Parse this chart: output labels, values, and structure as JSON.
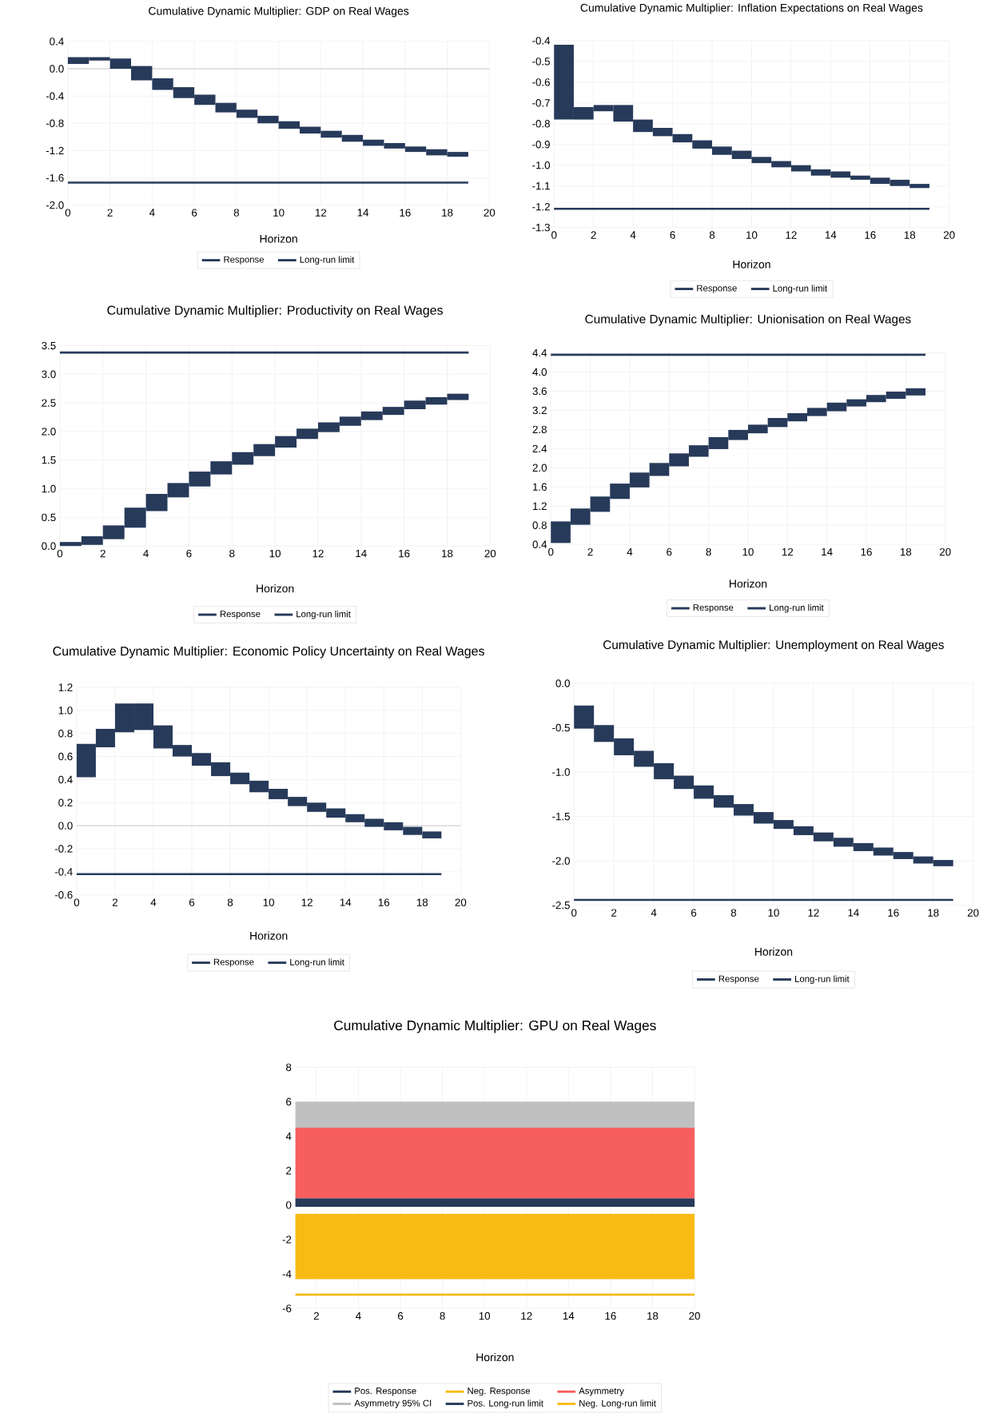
{
  "chart_data": [
    {
      "type": "bar",
      "title": "Cumulative Dynamic Multiplier: GDP on Real Wages",
      "xlabel": "Horizon",
      "xlim": [
        0,
        20
      ],
      "xticks": [
        0,
        2,
        4,
        6,
        8,
        10,
        12,
        14,
        16,
        18,
        20
      ],
      "ylim": [
        -2.0,
        0.4
      ],
      "yticks": [
        {
          "value": -2.0,
          "label": "-2.0"
        },
        {
          "value": -1.6,
          "label": "-1.6"
        },
        {
          "value": -1.2,
          "label": "-1.2"
        },
        {
          "value": -0.8,
          "label": "-0.8"
        },
        {
          "value": -0.4,
          "label": "-0.4"
        },
        {
          "value": 0.0,
          "label": "0.0"
        },
        {
          "value": 0.4,
          "label": "0.4"
        }
      ],
      "grid": true,
      "legend": "bottom",
      "ref_lines": [
        {
          "axis": "y",
          "value": 0,
          "color": "#bfbfbf"
        }
      ],
      "series": [
        {
          "name": "Response",
          "color": "#273a5a",
          "x": [
            0.5,
            1.5,
            2.5,
            3.5,
            4.5,
            5.5,
            6.5,
            7.5,
            8.5,
            9.5,
            10.5,
            11.5,
            12.5,
            13.5,
            14.5,
            15.5,
            16.5,
            17.5,
            18.5
          ],
          "base": [
            0.07,
            0.12,
            0.0,
            -0.17,
            -0.31,
            -0.43,
            -0.53,
            -0.64,
            -0.72,
            -0.8,
            -0.88,
            -0.95,
            -1.01,
            -1.07,
            -1.13,
            -1.17,
            -1.22,
            -1.27,
            -1.29
          ],
          "values": [
            0.1,
            0.05,
            0.15,
            0.21,
            0.17,
            0.16,
            0.15,
            0.14,
            0.12,
            0.11,
            0.11,
            0.1,
            0.1,
            0.1,
            0.09,
            0.08,
            0.08,
            0.09,
            0.07
          ]
        },
        {
          "name": "Long-run limit",
          "type": "line",
          "color": "#273a5a",
          "x": [
            0,
            19
          ],
          "values": [
            -1.67,
            -1.67
          ]
        }
      ]
    },
    {
      "type": "bar",
      "title": "Cumulative Dynamic Multiplier: Inflation Expectations on Real Wages",
      "xlabel": "Horizon",
      "xlim": [
        0,
        20
      ],
      "xticks": [
        0,
        2,
        4,
        6,
        8,
        10,
        12,
        14,
        16,
        18,
        20
      ],
      "ylim": [
        -1.3,
        -0.4
      ],
      "yticks": [
        {
          "value": -1.3,
          "label": "-1.3"
        },
        {
          "value": -1.2,
          "label": "-1.2"
        },
        {
          "value": -1.1,
          "label": "-1.1"
        },
        {
          "value": -1.0,
          "label": "-1.0"
        },
        {
          "value": -0.9,
          "label": "-0.9"
        },
        {
          "value": -0.8,
          "label": "-0.8"
        },
        {
          "value": -0.7,
          "label": "-0.7"
        },
        {
          "value": -0.6,
          "label": "-0.6"
        },
        {
          "value": -0.5,
          "label": "-0.5"
        },
        {
          "value": -0.4,
          "label": "-0.4"
        }
      ],
      "grid": true,
      "legend": "bottom",
      "series": [
        {
          "name": "Response",
          "color": "#273a5a",
          "x": [
            0.5,
            1.5,
            2.5,
            3.5,
            4.5,
            5.5,
            6.5,
            7.5,
            8.5,
            9.5,
            10.5,
            11.5,
            12.5,
            13.5,
            14.5,
            15.5,
            16.5,
            17.5,
            18.5
          ],
          "base": [
            -0.78,
            -0.78,
            -0.74,
            -0.79,
            -0.84,
            -0.86,
            -0.89,
            -0.92,
            -0.95,
            -0.97,
            -0.99,
            -1.01,
            -1.03,
            -1.05,
            -1.06,
            -1.07,
            -1.09,
            -1.1,
            -1.11
          ],
          "values": [
            0.36,
            0.06,
            0.03,
            0.08,
            0.06,
            0.04,
            0.04,
            0.04,
            0.04,
            0.04,
            0.03,
            0.03,
            0.03,
            0.03,
            0.03,
            0.02,
            0.03,
            0.03,
            0.02
          ]
        },
        {
          "name": "Long-run limit",
          "type": "line",
          "color": "#273a5a",
          "x": [
            0,
            19
          ],
          "values": [
            -1.21,
            -1.21
          ]
        }
      ]
    },
    {
      "type": "bar",
      "title": "Cumulative Dynamic Multiplier: Productivity on Real Wages",
      "xlabel": "Horizon",
      "xlim": [
        0,
        20
      ],
      "xticks": [
        0,
        2,
        4,
        6,
        8,
        10,
        12,
        14,
        16,
        18,
        20
      ],
      "ylim": [
        0.0,
        3.5
      ],
      "yticks": [
        {
          "value": 0.0,
          "label": "0.0"
        },
        {
          "value": 0.5,
          "label": "0.5"
        },
        {
          "value": 1.0,
          "label": "1.0"
        },
        {
          "value": 1.5,
          "label": "1.5"
        },
        {
          "value": 2.0,
          "label": "2.0"
        },
        {
          "value": 2.5,
          "label": "2.5"
        },
        {
          "value": 3.0,
          "label": "3.0"
        },
        {
          "value": 3.5,
          "label": "3.5"
        }
      ],
      "grid": true,
      "legend": "bottom",
      "series": [
        {
          "name": "Response",
          "color": "#273a5a",
          "x": [
            0.5,
            1.5,
            2.5,
            3.5,
            4.5,
            5.5,
            6.5,
            7.5,
            8.5,
            9.5,
            10.5,
            11.5,
            12.5,
            13.5,
            14.5,
            15.5,
            16.5,
            17.5,
            18.5
          ],
          "base": [
            0.0,
            0.02,
            0.12,
            0.32,
            0.61,
            0.85,
            1.04,
            1.25,
            1.42,
            1.57,
            1.72,
            1.87,
            1.99,
            2.1,
            2.2,
            2.29,
            2.39,
            2.47,
            2.55
          ],
          "values": [
            0.07,
            0.15,
            0.24,
            0.35,
            0.3,
            0.25,
            0.26,
            0.23,
            0.22,
            0.21,
            0.2,
            0.18,
            0.17,
            0.16,
            0.15,
            0.14,
            0.15,
            0.13,
            0.11
          ]
        },
        {
          "name": "Long-run limit",
          "type": "line",
          "color": "#273a5a",
          "x": [
            0,
            19
          ],
          "values": [
            3.38,
            3.38
          ]
        }
      ]
    },
    {
      "type": "bar",
      "title": "Cumulative Dynamic Multiplier: Unionisation on Real Wages",
      "xlabel": "Horizon",
      "xlim": [
        0,
        20
      ],
      "xticks": [
        0,
        2,
        4,
        6,
        8,
        10,
        12,
        14,
        16,
        18,
        20
      ],
      "ylim": [
        0.4,
        4.4
      ],
      "yticks": [
        {
          "value": 0.4,
          "label": "0.4"
        },
        {
          "value": 0.8,
          "label": "0.8"
        },
        {
          "value": 1.2,
          "label": "1.2"
        },
        {
          "value": 1.6,
          "label": "1.6"
        },
        {
          "value": 2.0,
          "label": "2.0"
        },
        {
          "value": 2.4,
          "label": "2.4"
        },
        {
          "value": 2.8,
          "label": "2.8"
        },
        {
          "value": 3.2,
          "label": "3.2"
        },
        {
          "value": 3.6,
          "label": "3.6"
        },
        {
          "value": 4.0,
          "label": "4.0"
        },
        {
          "value": 4.4,
          "label": "4.4"
        }
      ],
      "grid": true,
      "legend": "bottom",
      "series": [
        {
          "name": "Response",
          "color": "#273a5a",
          "x": [
            0.5,
            1.5,
            2.5,
            3.5,
            4.5,
            5.5,
            6.5,
            7.5,
            8.5,
            9.5,
            10.5,
            11.5,
            12.5,
            13.5,
            14.5,
            15.5,
            16.5,
            17.5,
            18.5
          ],
          "base": [
            0.43,
            0.81,
            1.08,
            1.35,
            1.59,
            1.83,
            2.03,
            2.23,
            2.39,
            2.58,
            2.72,
            2.85,
            2.97,
            3.08,
            3.18,
            3.28,
            3.37,
            3.44,
            3.51
          ],
          "values": [
            0.45,
            0.34,
            0.32,
            0.32,
            0.31,
            0.27,
            0.27,
            0.24,
            0.25,
            0.21,
            0.18,
            0.19,
            0.17,
            0.17,
            0.18,
            0.15,
            0.15,
            0.15,
            0.15
          ]
        },
        {
          "name": "Long-run limit",
          "type": "line",
          "color": "#273a5a",
          "x": [
            0,
            19
          ],
          "values": [
            4.36,
            4.36
          ]
        }
      ]
    },
    {
      "type": "bar",
      "title": "Cumulative Dynamic Multiplier: Economic Policy Uncertainty on Real Wages",
      "xlabel": "Horizon",
      "xlim": [
        0,
        20
      ],
      "xticks": [
        0,
        2,
        4,
        6,
        8,
        10,
        12,
        14,
        16,
        18,
        20
      ],
      "ylim": [
        -0.6,
        1.2
      ],
      "yticks": [
        {
          "value": -0.6,
          "label": "-0.6"
        },
        {
          "value": -0.4,
          "label": "-0.4"
        },
        {
          "value": -0.2,
          "label": "-0.2"
        },
        {
          "value": 0.0,
          "label": "0.0"
        },
        {
          "value": 0.2,
          "label": "0.2"
        },
        {
          "value": 0.4,
          "label": "0.4"
        },
        {
          "value": 0.6,
          "label": "0.6"
        },
        {
          "value": 0.8,
          "label": "0.8"
        },
        {
          "value": 1.0,
          "label": "1.0"
        },
        {
          "value": 1.2,
          "label": "1.2"
        }
      ],
      "grid": true,
      "legend": "bottom",
      "ref_lines": [
        {
          "axis": "y",
          "value": 0,
          "color": "#bfbfbf"
        }
      ],
      "series": [
        {
          "name": "Response",
          "color": "#273a5a",
          "x": [
            0.5,
            1.5,
            2.5,
            3.5,
            4.5,
            5.5,
            6.5,
            7.5,
            8.5,
            9.5,
            10.5,
            11.5,
            12.5,
            13.5,
            14.5,
            15.5,
            16.5,
            17.5,
            18.5
          ],
          "base": [
            0.42,
            0.68,
            0.81,
            0.83,
            0.67,
            0.6,
            0.52,
            0.43,
            0.36,
            0.29,
            0.23,
            0.17,
            0.12,
            0.07,
            0.03,
            -0.01,
            -0.04,
            -0.08,
            -0.11
          ],
          "values": [
            0.29,
            0.16,
            0.25,
            0.23,
            0.2,
            0.1,
            0.11,
            0.12,
            0.1,
            0.1,
            0.09,
            0.08,
            0.08,
            0.08,
            0.07,
            0.07,
            0.07,
            0.07,
            0.06
          ]
        },
        {
          "name": "Long-run limit",
          "type": "line",
          "color": "#273a5a",
          "x": [
            0,
            19
          ],
          "values": [
            -0.42,
            -0.42
          ]
        }
      ]
    },
    {
      "type": "bar",
      "title": "Cumulative Dynamic Multiplier: Unemployment on Real Wages",
      "xlabel": "Horizon",
      "xlim": [
        0,
        20
      ],
      "xticks": [
        0,
        2,
        4,
        6,
        8,
        10,
        12,
        14,
        16,
        18,
        20
      ],
      "ylim": [
        -2.5,
        0.0
      ],
      "yticks": [
        {
          "value": -2.5,
          "label": "-2.5"
        },
        {
          "value": -2.0,
          "label": "-2.0"
        },
        {
          "value": -1.5,
          "label": "-1.5"
        },
        {
          "value": -1.0,
          "label": "-1.0"
        },
        {
          "value": -0.5,
          "label": "-0.5"
        },
        {
          "value": 0.0,
          "label": "0.0"
        }
      ],
      "grid": true,
      "legend": "bottom",
      "series": [
        {
          "name": "Response",
          "color": "#273a5a",
          "x": [
            0.5,
            1.5,
            2.5,
            3.5,
            4.5,
            5.5,
            6.5,
            7.5,
            8.5,
            9.5,
            10.5,
            11.5,
            12.5,
            13.5,
            14.5,
            15.5,
            16.5,
            17.5,
            18.5
          ],
          "base": [
            -0.51,
            -0.66,
            -0.81,
            -0.94,
            -1.08,
            -1.19,
            -1.3,
            -1.4,
            -1.49,
            -1.58,
            -1.64,
            -1.71,
            -1.78,
            -1.84,
            -1.89,
            -1.94,
            -1.98,
            -2.03,
            -2.06
          ],
          "values": [
            0.26,
            0.19,
            0.19,
            0.18,
            0.18,
            0.15,
            0.15,
            0.14,
            0.13,
            0.13,
            0.1,
            0.1,
            0.1,
            0.1,
            0.09,
            0.09,
            0.08,
            0.08,
            0.07
          ]
        },
        {
          "name": "Long-run limit",
          "type": "line",
          "color": "#273a5a",
          "x": [
            0,
            19
          ],
          "values": [
            -2.44,
            -2.44
          ]
        }
      ]
    },
    {
      "type": "line",
      "title": "Cumulative Dynamic Multiplier: GPU on Real Wages",
      "xlabel": "Horizon",
      "xlim": [
        1,
        20
      ],
      "xticks": [
        2,
        4,
        6,
        8,
        10,
        12,
        14,
        16,
        18,
        20
      ],
      "ylim": [
        -6,
        8
      ],
      "yticks": [
        -6,
        -4,
        -2,
        0,
        2,
        4,
        6,
        8
      ],
      "grid": true,
      "legend": "bottom",
      "series": [
        {
          "name": "Pos. Long-run limit",
          "color": "#273a5a"
        },
        {
          "name": "Neg. Long-run limit",
          "color": "#f8bb14",
          "x": [
            1,
            20
          ],
          "values": [
            -5.2,
            -5.2
          ]
        }
      ],
      "bands": [
        {
          "axis": "y",
          "from": -0.1,
          "to": 0.4,
          "label": "Pos. Response",
          "color": "#273a5a"
        },
        {
          "axis": "y",
          "from": -4.3,
          "to": -0.5,
          "label": "Neg. Response",
          "color": "#f8bb14"
        },
        {
          "axis": "y",
          "from": 0.4,
          "to": 4.5,
          "label": "Asymmetry",
          "color": "#f75f5f"
        },
        {
          "axis": "y",
          "from": 4.5,
          "to": 6.0,
          "label": "Asymmetry 95% CI",
          "color": "#c0c0c0"
        }
      ]
    }
  ]
}
